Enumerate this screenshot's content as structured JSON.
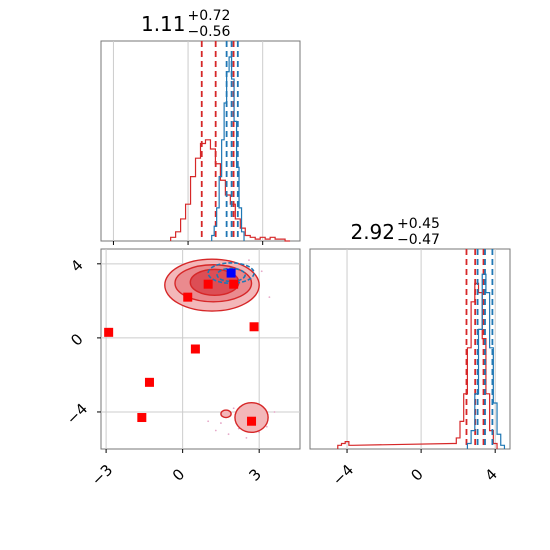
{
  "chart_data": [
    {
      "type": "histogram",
      "panel": "top-left",
      "title": {
        "main": "1.11",
        "sup": "+0.72",
        "sub": "−0.56"
      },
      "xlim": [
        -3.5,
        4.5
      ],
      "grid": true,
      "xticks": [
        -3,
        0,
        3
      ],
      "series": [
        {
          "color": "#d62728",
          "bins_x": [
            -0.6,
            -0.4,
            -0.2,
            0.0,
            0.2,
            0.4,
            0.6,
            0.8,
            1.0,
            1.2,
            1.4,
            1.6,
            1.8,
            2.0,
            2.2,
            2.4,
            2.6,
            2.8,
            3.0,
            3.2,
            3.4,
            3.6,
            3.8,
            4.0
          ],
          "counts": [
            0.02,
            0.05,
            0.12,
            0.2,
            0.35,
            0.45,
            0.53,
            0.55,
            0.5,
            0.42,
            0.33,
            0.25,
            0.2,
            0.12,
            0.07,
            0.03,
            0.02,
            0.01,
            0.02,
            0.01,
            0.02,
            0.01,
            0.01,
            0.0
          ],
          "quantile_lines": [
            0.55,
            1.11,
            1.83
          ]
        },
        {
          "color": "#1f77b4",
          "bins_x": [
            1.0,
            1.1,
            1.2,
            1.3,
            1.4,
            1.5,
            1.6,
            1.7,
            1.8,
            1.9,
            2.0,
            2.1,
            2.2
          ],
          "counts": [
            0.03,
            0.08,
            0.18,
            0.35,
            0.55,
            0.75,
            0.92,
            1.0,
            0.88,
            0.65,
            0.4,
            0.18,
            0.05
          ],
          "quantile_lines": [
            1.55,
            1.75,
            2.0
          ]
        }
      ]
    },
    {
      "type": "scatter",
      "panel": "bottom-left",
      "xlim": [
        -3.2,
        4.6
      ],
      "ylim": [
        -6.0,
        4.8
      ],
      "grid": true,
      "xticks": [
        -3,
        0,
        3
      ],
      "yticks": [
        4,
        0,
        -4
      ],
      "markers": [
        {
          "x": -2.9,
          "y": 0.3,
          "color": "#ff0000"
        },
        {
          "x": -1.6,
          "y": -4.3,
          "color": "#ff0000"
        },
        {
          "x": -1.3,
          "y": -2.4,
          "color": "#ff0000"
        },
        {
          "x": 0.2,
          "y": 2.2,
          "color": "#ff0000"
        },
        {
          "x": 0.5,
          "y": -0.6,
          "color": "#ff0000"
        },
        {
          "x": 1.0,
          "y": 2.9,
          "color": "#ff0000"
        },
        {
          "x": 2.0,
          "y": 2.9,
          "color": "#ff0000"
        },
        {
          "x": 2.8,
          "y": 0.6,
          "color": "#ff0000"
        },
        {
          "x": 2.7,
          "y": -4.5,
          "color": "#ff0000"
        },
        {
          "x": 1.9,
          "y": 3.5,
          "color": "#0000ff"
        }
      ],
      "contours": [
        {
          "cx": 1.15,
          "cy": 2.85,
          "rx": 1.85,
          "ry": 1.4,
          "fill": "#f3b7b9",
          "stroke": "#d62728"
        },
        {
          "cx": 1.2,
          "cy": 2.95,
          "rx": 1.5,
          "ry": 1.0,
          "fill": "#ea8a8e",
          "stroke": "#d62728"
        },
        {
          "cx": 1.25,
          "cy": 3.0,
          "rx": 0.95,
          "ry": 0.7,
          "fill": "#dc4e55",
          "stroke": "#d62728"
        },
        {
          "cx": 2.7,
          "cy": -4.3,
          "rx": 0.65,
          "ry": 0.8,
          "fill": "#f3b7b9",
          "stroke": "#d62728"
        },
        {
          "cx": 1.7,
          "cy": -4.1,
          "rx": 0.2,
          "ry": 0.2,
          "fill": "#f3b7b9",
          "stroke": "#d62728"
        },
        {
          "cx": 1.9,
          "cy": 3.5,
          "rx": 0.9,
          "ry": 0.55,
          "fill": "none",
          "stroke": "#1f77b4"
        },
        {
          "cx": 1.9,
          "cy": 3.4,
          "rx": 0.55,
          "ry": 0.35,
          "fill": "none",
          "stroke": "#1f77b4"
        }
      ]
    },
    {
      "type": "histogram",
      "panel": "bottom-right",
      "title": {
        "main": "2.92",
        "sup": "+0.45",
        "sub": "−0.47"
      },
      "xlim": [
        -6.0,
        4.8
      ],
      "grid": true,
      "xticks": [
        -4,
        0,
        4
      ],
      "series": [
        {
          "color": "#d62728",
          "bins_x": [
            -4.4,
            -4.2,
            -4.0,
            -3.8,
            1.8,
            2.0,
            2.2,
            2.4,
            2.6,
            2.8,
            3.0,
            3.2,
            3.4,
            3.6,
            3.8,
            4.0
          ],
          "counts": [
            0.02,
            0.03,
            0.04,
            0.02,
            0.03,
            0.06,
            0.15,
            0.3,
            0.55,
            0.8,
            0.9,
            0.85,
            0.6,
            0.3,
            0.1,
            0.03
          ],
          "quantile_lines": [
            2.45,
            2.92,
            3.37
          ]
        },
        {
          "color": "#1f77b4",
          "bins_x": [
            2.6,
            2.8,
            3.0,
            3.2,
            3.4,
            3.6,
            3.8,
            4.0,
            4.2,
            4.4
          ],
          "counts": [
            0.03,
            0.1,
            0.3,
            0.65,
            0.95,
            0.85,
            0.55,
            0.25,
            0.08,
            0.02
          ],
          "quantile_lines": [
            3.05,
            3.45,
            3.85
          ]
        }
      ]
    }
  ]
}
